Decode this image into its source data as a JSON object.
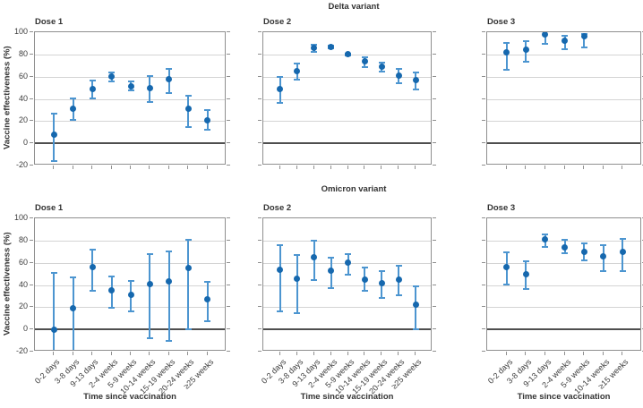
{
  "chart_data": {
    "type": "scatter",
    "rows": [
      "Delta variant",
      "Omicron variant"
    ],
    "ylabel": "Vaccine effectiveness (%)",
    "xlabel": "Time since vaccination",
    "ylim": [
      -20,
      100
    ],
    "y_ticks": [
      100,
      80,
      60,
      40,
      20,
      0,
      -20
    ],
    "grid": "on",
    "legend": "none",
    "colors": {
      "marker": "#1668ae",
      "whisker": "#4c95d0",
      "gridline": "#d4d4d4",
      "zeroline": "#4f4f4f",
      "frame": "#8f8f8f",
      "tick": "#8f8f8f",
      "text": "#333333"
    },
    "panels": [
      {
        "row": "Delta variant",
        "dose": "Dose 1",
        "categories": [
          "0-2 days",
          "3-8 days",
          "9-13 days",
          "2-4 weeks",
          "5-9 weeks",
          "10-14 weeks",
          "15-19 weeks",
          "20-24 weeks",
          "≥25 weeks"
        ],
        "points": [
          {
            "value": 8,
            "lo": -16,
            "hi": 27
          },
          {
            "value": 31,
            "lo": 21,
            "hi": 41
          },
          {
            "value": 49,
            "lo": 40,
            "hi": 57
          },
          {
            "value": 60,
            "lo": 55,
            "hi": 64
          },
          {
            "value": 51,
            "lo": 47,
            "hi": 56
          },
          {
            "value": 50,
            "lo": 37,
            "hi": 61
          },
          {
            "value": 58,
            "lo": 45,
            "hi": 67
          },
          {
            "value": 31,
            "lo": 14,
            "hi": 43
          },
          {
            "value": 21,
            "lo": 12,
            "hi": 30
          }
        ]
      },
      {
        "row": "Delta variant",
        "dose": "Dose 2",
        "categories": [
          "0-2 days",
          "3-8 days",
          "9-13 days",
          "2-4 weeks",
          "5-9 weeks",
          "10-14 weeks",
          "15-19 weeks",
          "20-24 weeks",
          "≥25 weeks"
        ],
        "points": [
          {
            "value": 49,
            "lo": 36,
            "hi": 60
          },
          {
            "value": 65,
            "lo": 57,
            "hi": 72
          },
          {
            "value": 86,
            "lo": 82,
            "hi": 89
          },
          {
            "value": 87,
            "lo": 85,
            "hi": 88
          },
          {
            "value": 80,
            "lo": 79,
            "hi": 81
          },
          {
            "value": 74,
            "lo": 68,
            "hi": 78
          },
          {
            "value": 69,
            "lo": 64,
            "hi": 73
          },
          {
            "value": 61,
            "lo": 54,
            "hi": 67
          },
          {
            "value": 57,
            "lo": 48,
            "hi": 64
          }
        ]
      },
      {
        "row": "Delta variant",
        "dose": "Dose 3",
        "categories": [
          "0-2 days",
          "3-8 days",
          "9-13 days",
          "2-4 weeks",
          "5-9 weeks",
          "10-14 weeks",
          "≥15 weeks"
        ],
        "points": [
          {
            "value": 82,
            "lo": 66,
            "hi": 91
          },
          {
            "value": 84,
            "lo": 73,
            "hi": 92
          },
          {
            "value": 98,
            "lo": 89,
            "hi": 100,
            "hi_clipped": true
          },
          {
            "value": 92,
            "lo": 84,
            "hi": 97
          },
          {
            "value": 96,
            "lo": 86,
            "hi": 99
          },
          null,
          null
        ]
      },
      {
        "row": "Omicron variant",
        "dose": "Dose 1",
        "categories": [
          "0-2 days",
          "3-8 days",
          "9-13 days",
          "2-4 weeks",
          "5-9 weeks",
          "10-14 weeks",
          "15-19 weeks",
          "20-24 weeks",
          "≥25 weeks"
        ],
        "points": [
          {
            "value": 0,
            "lo": -20,
            "hi": 51,
            "lo_clipped": true
          },
          {
            "value": 19,
            "lo": -20,
            "hi": 47,
            "lo_clipped": true
          },
          {
            "value": 56,
            "lo": 34,
            "hi": 72
          },
          {
            "value": 35,
            "lo": 19,
            "hi": 48
          },
          {
            "value": 31,
            "lo": 16,
            "hi": 44
          },
          {
            "value": 41,
            "lo": -8,
            "hi": 68
          },
          {
            "value": 43,
            "lo": -11,
            "hi": 71
          },
          {
            "value": 55,
            "lo": 0,
            "hi": 81
          },
          {
            "value": 27,
            "lo": 7,
            "hi": 43
          }
        ]
      },
      {
        "row": "Omicron variant",
        "dose": "Dose 2",
        "categories": [
          "0-2 days",
          "3-8 days",
          "9-13 days",
          "2-4 weeks",
          "5-9 weeks",
          "10-14 weeks",
          "15-19 weeks",
          "20-24 weeks",
          "≥25 weeks"
        ],
        "points": [
          {
            "value": 54,
            "lo": 16,
            "hi": 76
          },
          {
            "value": 46,
            "lo": 14,
            "hi": 67
          },
          {
            "value": 65,
            "lo": 44,
            "hi": 80
          },
          {
            "value": 53,
            "lo": 37,
            "hi": 65
          },
          {
            "value": 60,
            "lo": 49,
            "hi": 68
          },
          {
            "value": 45,
            "lo": 34,
            "hi": 56
          },
          {
            "value": 42,
            "lo": 28,
            "hi": 53
          },
          {
            "value": 45,
            "lo": 30,
            "hi": 58
          },
          {
            "value": 22,
            "lo": 0,
            "hi": 39
          }
        ]
      },
      {
        "row": "Omicron variant",
        "dose": "Dose 3",
        "categories": [
          "0-2 days",
          "3-8 days",
          "9-13 days",
          "2-4 weeks",
          "5-9 weeks",
          "10-14 weeks",
          "≥15 weeks"
        ],
        "points": [
          {
            "value": 56,
            "lo": 40,
            "hi": 70
          },
          {
            "value": 50,
            "lo": 36,
            "hi": 62
          },
          {
            "value": 81,
            "lo": 74,
            "hi": 86
          },
          {
            "value": 74,
            "lo": 68,
            "hi": 81
          },
          {
            "value": 70,
            "lo": 62,
            "hi": 78
          },
          {
            "value": 66,
            "lo": 52,
            "hi": 76
          },
          {
            "value": 70,
            "lo": 52,
            "hi": 82
          }
        ]
      }
    ]
  }
}
